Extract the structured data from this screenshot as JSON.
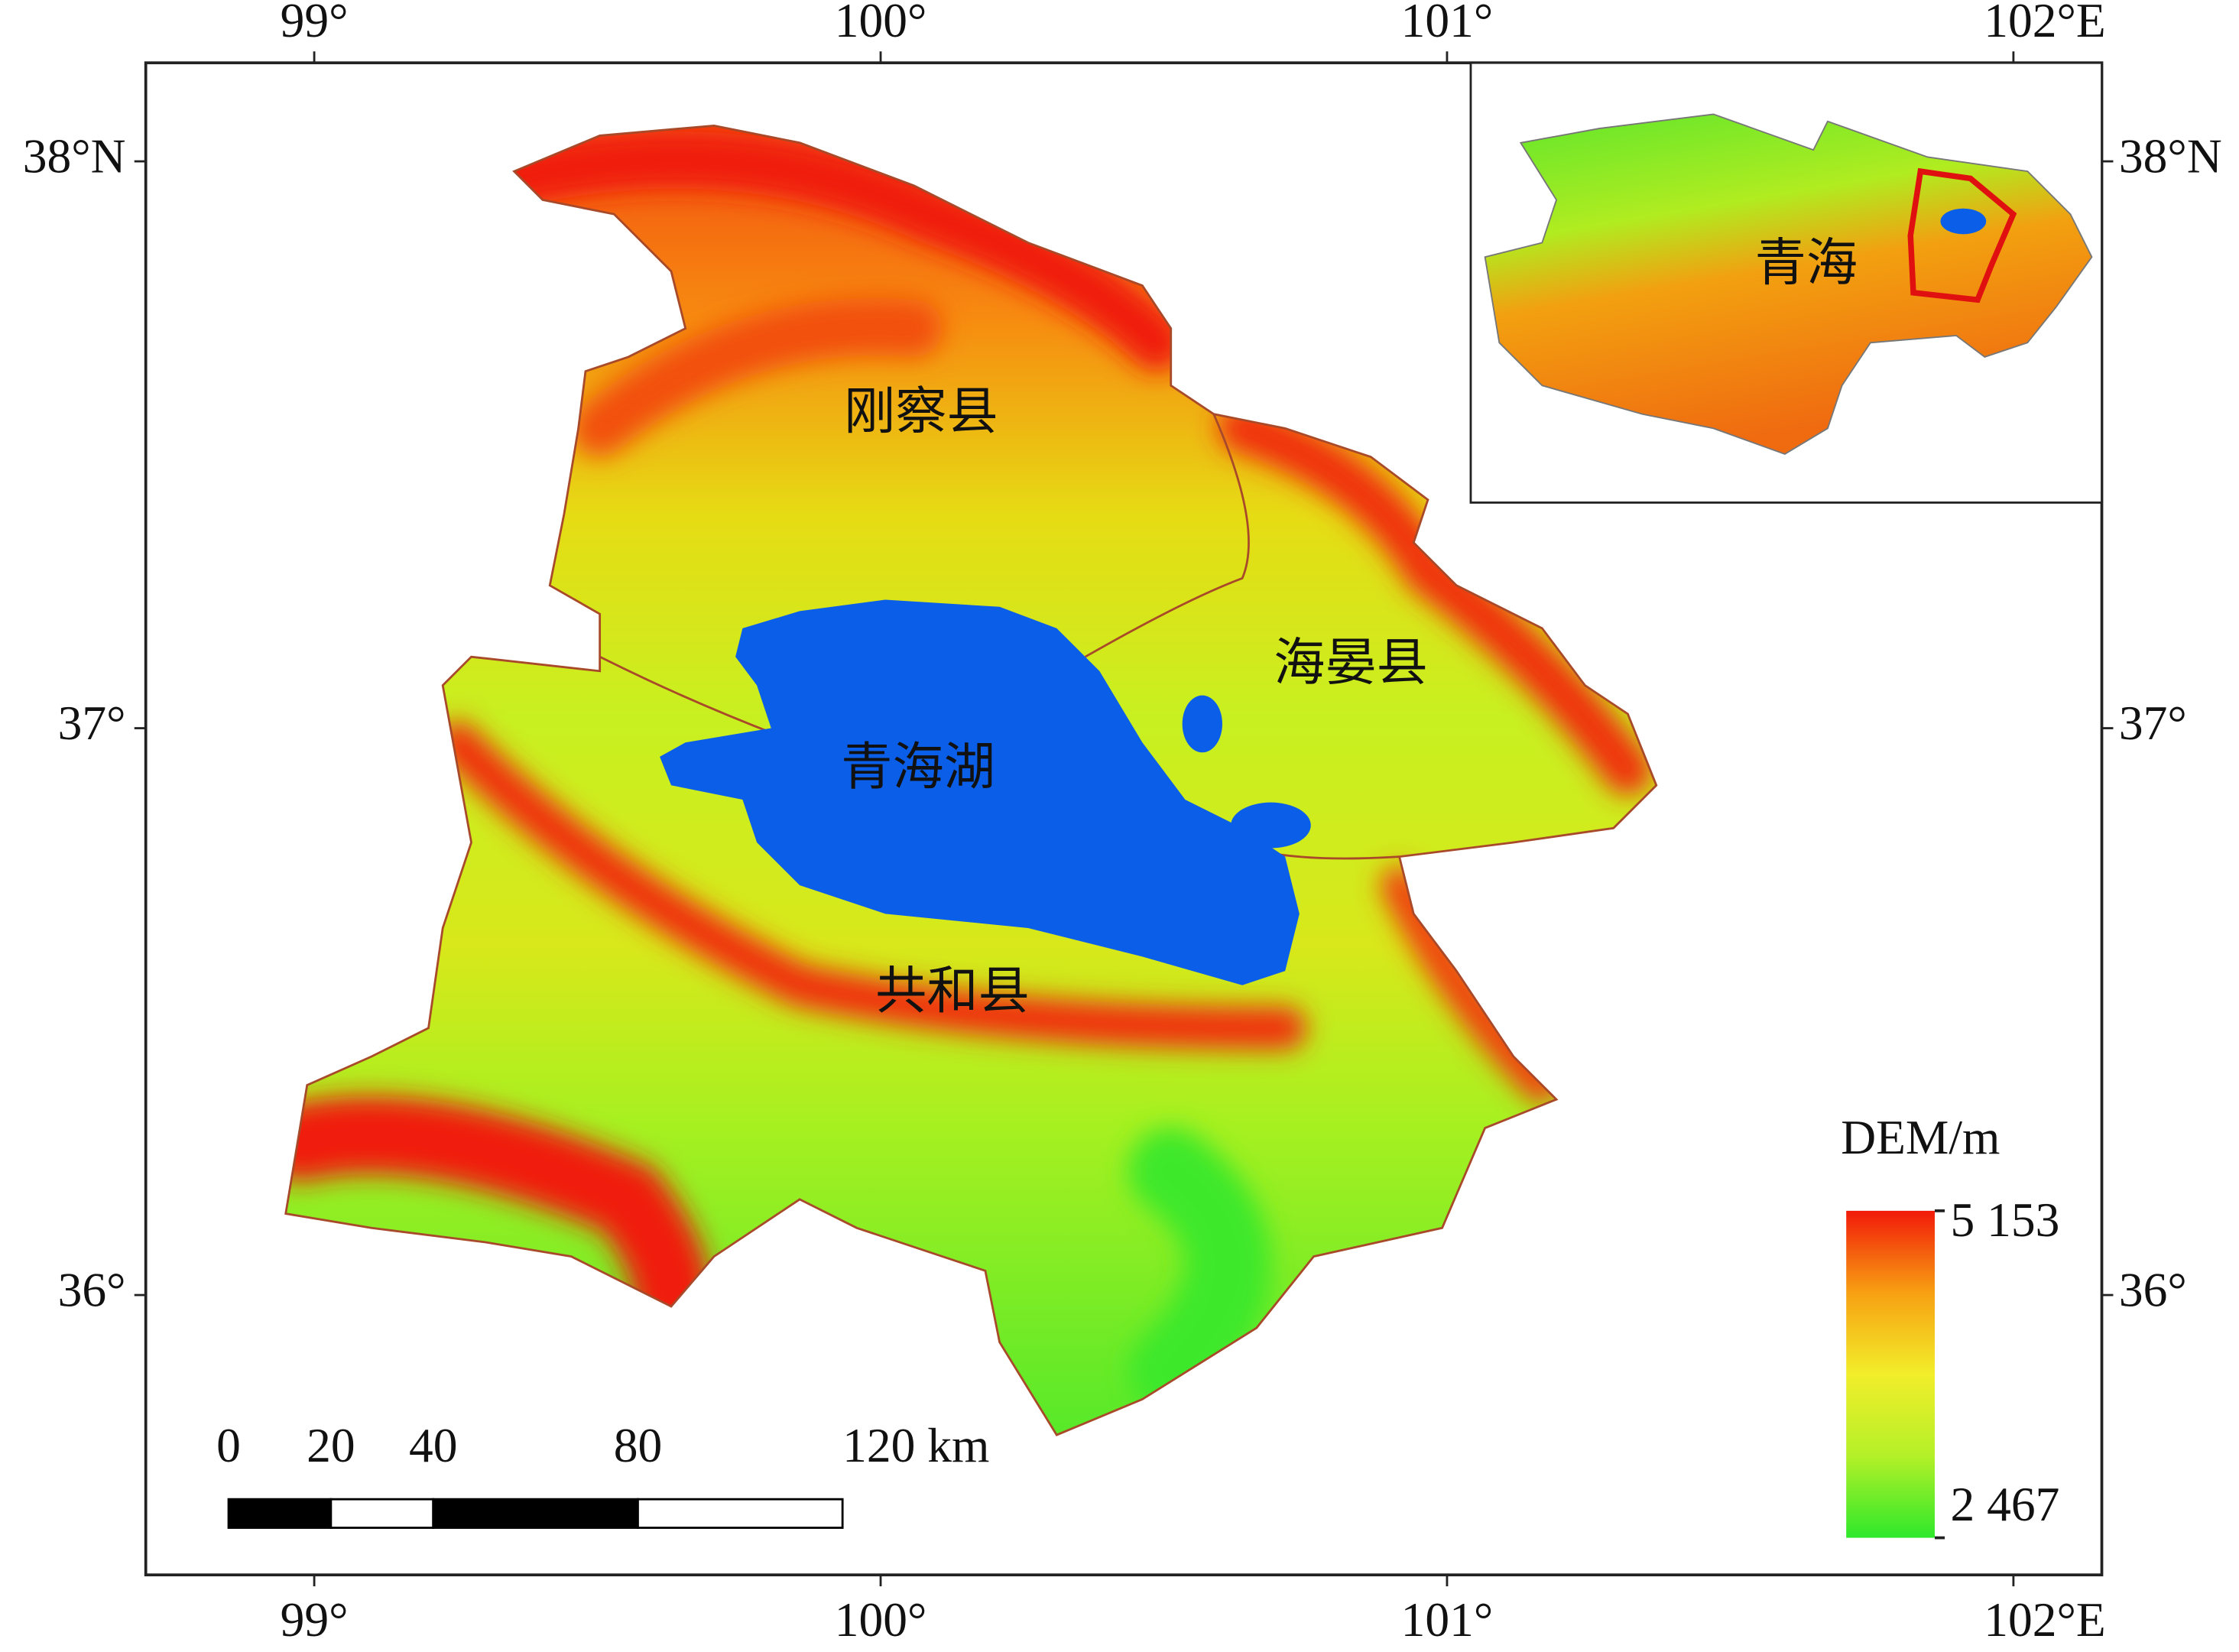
{
  "map": {
    "longitude_ticks": [
      {
        "value": 99,
        "label": "99°"
      },
      {
        "value": 100,
        "label": "100°"
      },
      {
        "value": 101,
        "label": "101°"
      },
      {
        "value": 102,
        "label": "102°E"
      }
    ],
    "latitude_ticks": [
      {
        "value": 38,
        "label": "38°N"
      },
      {
        "value": 37,
        "label": "37°"
      },
      {
        "value": 36,
        "label": "36°"
      }
    ],
    "labels": [
      "刚察县",
      "海晏县",
      "青海湖",
      "共和县"
    ],
    "inset_label": "青海",
    "legend": {
      "title": "DEM/m",
      "max": {
        "value": 5153,
        "label": "5 153"
      },
      "min": {
        "value": 2467,
        "label": "2 467"
      }
    },
    "scale_bar": {
      "ticks": [
        0,
        20,
        40,
        80,
        {
          "value": 120,
          "label": "120 km"
        }
      ]
    }
  }
}
